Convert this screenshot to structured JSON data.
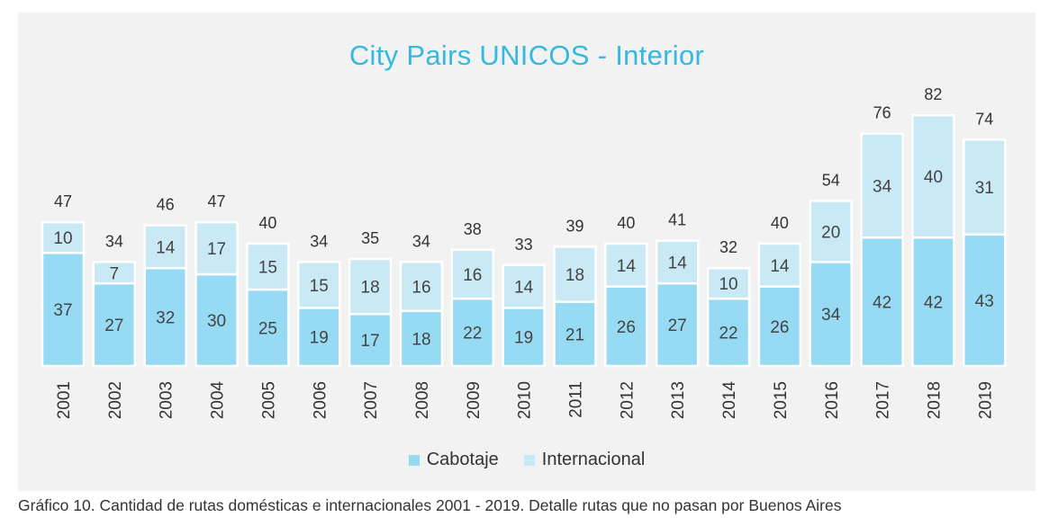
{
  "chart_data": {
    "type": "bar",
    "stacked": true,
    "title": "City Pairs UNICOS - Interior",
    "categories": [
      "2001",
      "2002",
      "2003",
      "2004",
      "2005",
      "2006",
      "2007",
      "2008",
      "2009",
      "2010",
      "2011",
      "2012",
      "2013",
      "2014",
      "2015",
      "2016",
      "2017",
      "2018",
      "2019"
    ],
    "series": [
      {
        "name": "Cabotaje",
        "color": "#97daf3",
        "values": [
          37,
          27,
          32,
          30,
          25,
          19,
          17,
          18,
          22,
          19,
          21,
          26,
          27,
          22,
          26,
          34,
          42,
          42,
          43
        ]
      },
      {
        "name": "Internacional",
        "color": "#c9e9f5",
        "values": [
          10,
          7,
          14,
          17,
          15,
          15,
          18,
          16,
          16,
          14,
          18,
          14,
          14,
          10,
          14,
          20,
          34,
          40,
          31
        ]
      }
    ],
    "totals": [
      47,
      34,
      46,
      47,
      40,
      34,
      35,
      34,
      38,
      33,
      39,
      40,
      41,
      32,
      40,
      54,
      76,
      82,
      74
    ],
    "xlabel": "",
    "ylabel": "",
    "ylim": [
      0,
      90
    ],
    "grid": false,
    "legend": "bottom"
  },
  "caption": "Gráfico 10. Cantidad de rutas domésticas e internacionales 2001 - 2019. Detalle rutas que no pasan por Buenos Aires"
}
